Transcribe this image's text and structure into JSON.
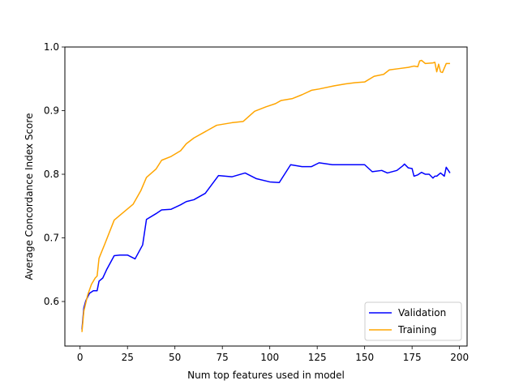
{
  "chart_data": {
    "type": "line",
    "title": "",
    "xlabel": "Num top features used in model",
    "ylabel": "Average Concordance Index Score",
    "xlim": [
      -8,
      204
    ],
    "ylim": [
      0.53,
      1.0
    ],
    "xticks": [
      0,
      25,
      50,
      75,
      100,
      125,
      150,
      175,
      200
    ],
    "yticks": [
      0.6,
      0.7,
      0.8,
      0.9,
      1.0
    ],
    "xtick_labels": [
      "0",
      "25",
      "50",
      "75",
      "100",
      "125",
      "150",
      "175",
      "200"
    ],
    "ytick_labels": [
      "0.6",
      "0.7",
      "0.8",
      "0.9",
      "1.0"
    ],
    "grid": false,
    "legend_position": "lower-right",
    "series": [
      {
        "name": "Validation",
        "color": "#0000ff",
        "x": [
          1,
          2,
          3,
          5,
          7,
          9,
          10,
          12,
          14,
          18,
          21,
          25,
          29,
          33,
          35,
          40,
          43,
          48,
          53,
          56,
          60,
          66,
          73,
          80,
          87,
          93,
          100,
          105,
          111,
          117,
          122,
          126,
          133,
          140,
          145,
          150,
          154,
          159,
          162,
          167,
          170,
          171,
          173,
          175,
          176,
          178,
          180,
          182,
          184,
          186,
          187,
          188,
          190,
          192,
          193,
          195
        ],
        "y": [
          0.556,
          0.59,
          0.601,
          0.613,
          0.617,
          0.617,
          0.632,
          0.637,
          0.65,
          0.672,
          0.673,
          0.673,
          0.667,
          0.689,
          0.729,
          0.738,
          0.744,
          0.745,
          0.752,
          0.757,
          0.76,
          0.77,
          0.798,
          0.796,
          0.802,
          0.793,
          0.788,
          0.787,
          0.815,
          0.812,
          0.812,
          0.818,
          0.815,
          0.815,
          0.815,
          0.815,
          0.804,
          0.806,
          0.802,
          0.806,
          0.813,
          0.816,
          0.81,
          0.809,
          0.797,
          0.799,
          0.803,
          0.8,
          0.8,
          0.794,
          0.797,
          0.797,
          0.802,
          0.797,
          0.811,
          0.802
        ]
      },
      {
        "name": "Training",
        "color": "#ffa500",
        "x": [
          1,
          2,
          4,
          6,
          8,
          9,
          10,
          13,
          18,
          22,
          28,
          32,
          35,
          40,
          43,
          48,
          53,
          56,
          60,
          66,
          72,
          80,
          86,
          92,
          98,
          103,
          106,
          112,
          117,
          122,
          126,
          134,
          140,
          145,
          150,
          155,
          160,
          163,
          168,
          173,
          176,
          178,
          179,
          180,
          182,
          186,
          187,
          188,
          189,
          190,
          191,
          193,
          195
        ],
        "y": [
          0.552,
          0.585,
          0.61,
          0.627,
          0.637,
          0.64,
          0.668,
          0.69,
          0.728,
          0.738,
          0.753,
          0.774,
          0.795,
          0.808,
          0.822,
          0.828,
          0.837,
          0.848,
          0.857,
          0.867,
          0.877,
          0.881,
          0.883,
          0.899,
          0.906,
          0.911,
          0.916,
          0.919,
          0.925,
          0.932,
          0.934,
          0.939,
          0.942,
          0.944,
          0.945,
          0.954,
          0.957,
          0.964,
          0.966,
          0.968,
          0.97,
          0.969,
          0.978,
          0.979,
          0.974,
          0.975,
          0.976,
          0.961,
          0.973,
          0.961,
          0.96,
          0.974,
          0.974
        ]
      }
    ]
  }
}
